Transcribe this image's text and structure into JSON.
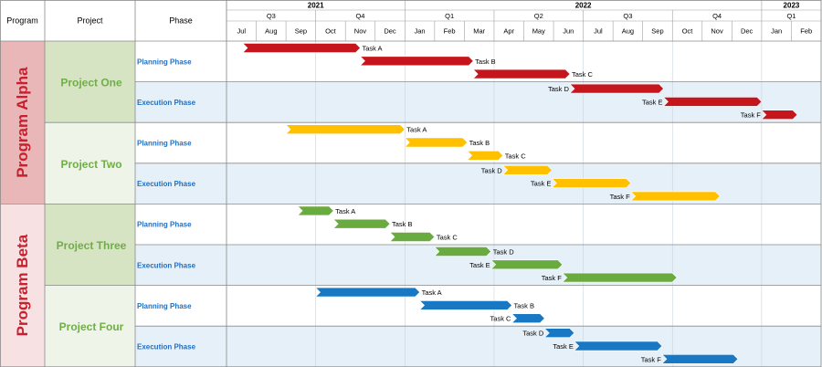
{
  "headers": {
    "program": "Program",
    "project": "Project",
    "phase": "Phase"
  },
  "years": [
    {
      "label": "2021",
      "start_month": 0,
      "months": 6
    },
    {
      "label": "2022",
      "start_month": 6,
      "months": 12
    },
    {
      "label": "2023",
      "start_month": 18,
      "months": 2
    }
  ],
  "quarters": [
    {
      "label": "Q3",
      "start_month": 0,
      "months": 3
    },
    {
      "label": "Q4",
      "start_month": 3,
      "months": 3
    },
    {
      "label": "Q1",
      "start_month": 6,
      "months": 3
    },
    {
      "label": "Q2",
      "start_month": 9,
      "months": 3
    },
    {
      "label": "Q3",
      "start_month": 12,
      "months": 3
    },
    {
      "label": "Q4",
      "start_month": 15,
      "months": 3
    },
    {
      "label": "Q1",
      "start_month": 18,
      "months": 2
    }
  ],
  "months": [
    "Jul",
    "Aug",
    "Sep",
    "Oct",
    "Nov",
    "Dec",
    "Jan",
    "Feb",
    "Mar",
    "Apr",
    "May",
    "Jun",
    "Jul",
    "Aug",
    "Sep",
    "Oct",
    "Nov",
    "Dec",
    "Jan",
    "Feb"
  ],
  "colors": {
    "red": "#c5161d",
    "amber": "#ffc000",
    "green": "#6aab3f",
    "blue": "#1878c4",
    "program_alpha_bg": "#eab7b9",
    "program_beta_bg": "#f8e1e2",
    "program_text": "#c8202f",
    "project_dark_bg": "#d6e4c4",
    "project_light_bg": "#eef4e8",
    "project_text": "#70ad47",
    "phase_text": "#1f6fc2",
    "exec_row_bg": "#e6f0f8"
  },
  "programs": [
    {
      "name": "Program Alpha",
      "shade": "dark",
      "projects": [
        0,
        1
      ]
    },
    {
      "name": "Program Beta",
      "shade": "light",
      "projects": [
        2,
        3
      ]
    }
  ],
  "projects": [
    {
      "name": "Project One",
      "color": "red",
      "shade": "dark"
    },
    {
      "name": "Project Two",
      "color": "amber",
      "shade": "light"
    },
    {
      "name": "Project Three",
      "color": "green",
      "shade": "dark"
    },
    {
      "name": "Project Four",
      "color": "blue",
      "shade": "light"
    }
  ],
  "phase_labels": {
    "planning": "Planning Phase",
    "execution": "Execution Phase"
  },
  "chart_data": {
    "type": "gantt",
    "time_axis": {
      "start": "2021-07-01",
      "end": "2023-02-28",
      "unit": "month"
    },
    "tasks": [
      {
        "project": "Project One",
        "phase": "Planning Phase",
        "task": "Task A",
        "start": 0.55,
        "end": 4.5,
        "label_side": "right"
      },
      {
        "project": "Project One",
        "phase": "Planning Phase",
        "task": "Task B",
        "start": 4.5,
        "end": 8.3,
        "label_side": "right"
      },
      {
        "project": "Project One",
        "phase": "Planning Phase",
        "task": "Task C",
        "start": 8.3,
        "end": 11.55,
        "label_side": "right"
      },
      {
        "project": "Project One",
        "phase": "Execution Phase",
        "task": "Task D",
        "start": 11.55,
        "end": 14.7,
        "label_side": "left"
      },
      {
        "project": "Project One",
        "phase": "Execution Phase",
        "task": "Task E",
        "start": 14.7,
        "end": 18.0,
        "label_side": "left"
      },
      {
        "project": "Project One",
        "phase": "Execution Phase",
        "task": "Task F",
        "start": 18.0,
        "end": 19.2,
        "label_side": "left"
      },
      {
        "project": "Project Two",
        "phase": "Planning Phase",
        "task": "Task A",
        "start": 2.0,
        "end": 6.0,
        "label_side": "right"
      },
      {
        "project": "Project Two",
        "phase": "Planning Phase",
        "task": "Task B",
        "start": 6.0,
        "end": 8.1,
        "label_side": "right"
      },
      {
        "project": "Project Two",
        "phase": "Planning Phase",
        "task": "Task C",
        "start": 8.1,
        "end": 9.3,
        "label_side": "right"
      },
      {
        "project": "Project Two",
        "phase": "Execution Phase",
        "task": "Task D",
        "start": 9.3,
        "end": 10.95,
        "label_side": "left"
      },
      {
        "project": "Project Two",
        "phase": "Execution Phase",
        "task": "Task E",
        "start": 10.95,
        "end": 13.6,
        "label_side": "left"
      },
      {
        "project": "Project Two",
        "phase": "Execution Phase",
        "task": "Task F",
        "start": 13.6,
        "end": 16.6,
        "label_side": "left"
      },
      {
        "project": "Project Three",
        "phase": "Planning Phase",
        "task": "Task A",
        "start": 2.4,
        "end": 3.6,
        "label_side": "right"
      },
      {
        "project": "Project Three",
        "phase": "Planning Phase",
        "task": "Task B",
        "start": 3.6,
        "end": 5.5,
        "label_side": "right"
      },
      {
        "project": "Project Three",
        "phase": "Planning Phase",
        "task": "Task C",
        "start": 5.5,
        "end": 7.0,
        "label_side": "right"
      },
      {
        "project": "Project Three",
        "phase": "Execution Phase",
        "task": "Task D",
        "start": 7.0,
        "end": 8.9,
        "label_side": "right"
      },
      {
        "project": "Project Three",
        "phase": "Execution Phase",
        "task": "Task E",
        "start": 8.9,
        "end": 11.3,
        "label_side": "left"
      },
      {
        "project": "Project Three",
        "phase": "Execution Phase",
        "task": "Task F",
        "start": 11.3,
        "end": 15.15,
        "label_side": "left"
      },
      {
        "project": "Project Four",
        "phase": "Planning Phase",
        "task": "Task A",
        "start": 3.0,
        "end": 6.5,
        "label_side": "right"
      },
      {
        "project": "Project Four",
        "phase": "Planning Phase",
        "task": "Task B",
        "start": 6.5,
        "end": 9.6,
        "label_side": "right"
      },
      {
        "project": "Project Four",
        "phase": "Planning Phase",
        "task": "Task C",
        "start": 9.6,
        "end": 10.7,
        "label_side": "left"
      },
      {
        "project": "Project Four",
        "phase": "Execution Phase",
        "task": "Task D",
        "start": 10.7,
        "end": 11.7,
        "label_side": "left"
      },
      {
        "project": "Project Four",
        "phase": "Execution Phase",
        "task": "Task E",
        "start": 11.7,
        "end": 14.65,
        "label_side": "left"
      },
      {
        "project": "Project Four",
        "phase": "Execution Phase",
        "task": "Task F",
        "start": 14.65,
        "end": 17.2,
        "label_side": "left"
      }
    ]
  }
}
